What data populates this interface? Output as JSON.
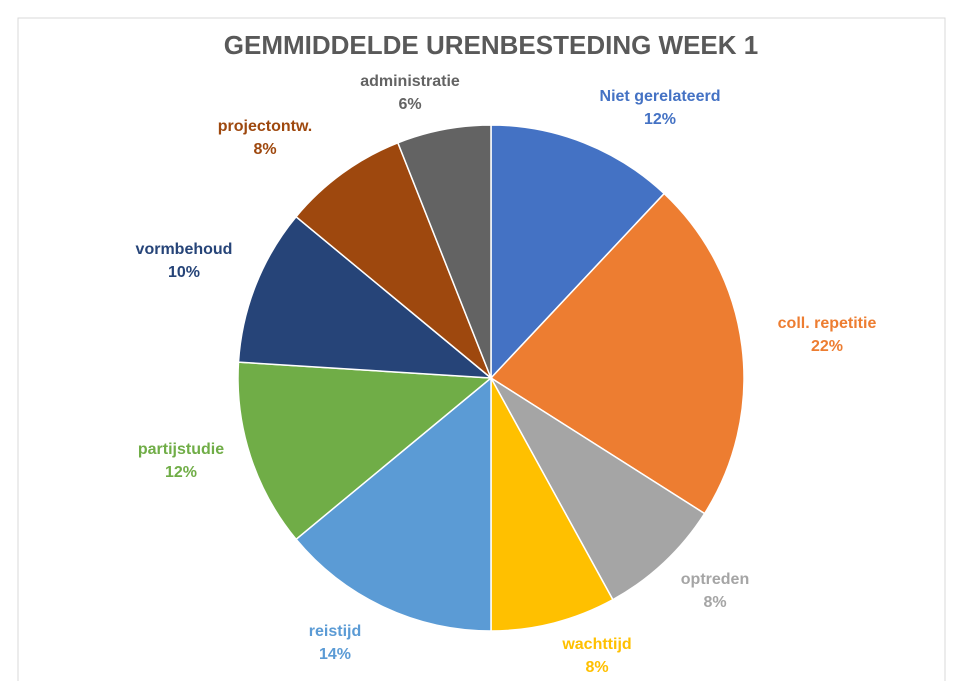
{
  "chart_data": {
    "type": "pie",
    "title": "GEMMIDDELDE URENBESTEDING WEEK 1",
    "categories": [
      "Niet gerelateerd",
      "coll. repetitie",
      "optreden",
      "wachttijd",
      "reistijd",
      "partijstudie",
      "vormbehoud",
      "projectontw.",
      "administratie"
    ],
    "values": [
      12,
      22,
      8,
      8,
      14,
      12,
      10,
      8,
      6
    ],
    "value_labels": [
      "12%",
      "22%",
      "8%",
      "8%",
      "14%",
      "12%",
      "10%",
      "8%",
      "6%"
    ],
    "colors": [
      "#4472c4",
      "#ed7d31",
      "#a5a5a5",
      "#ffc000",
      "#5b9bd5",
      "#70ad47",
      "#264478",
      "#9e480e",
      "#636363"
    ]
  }
}
